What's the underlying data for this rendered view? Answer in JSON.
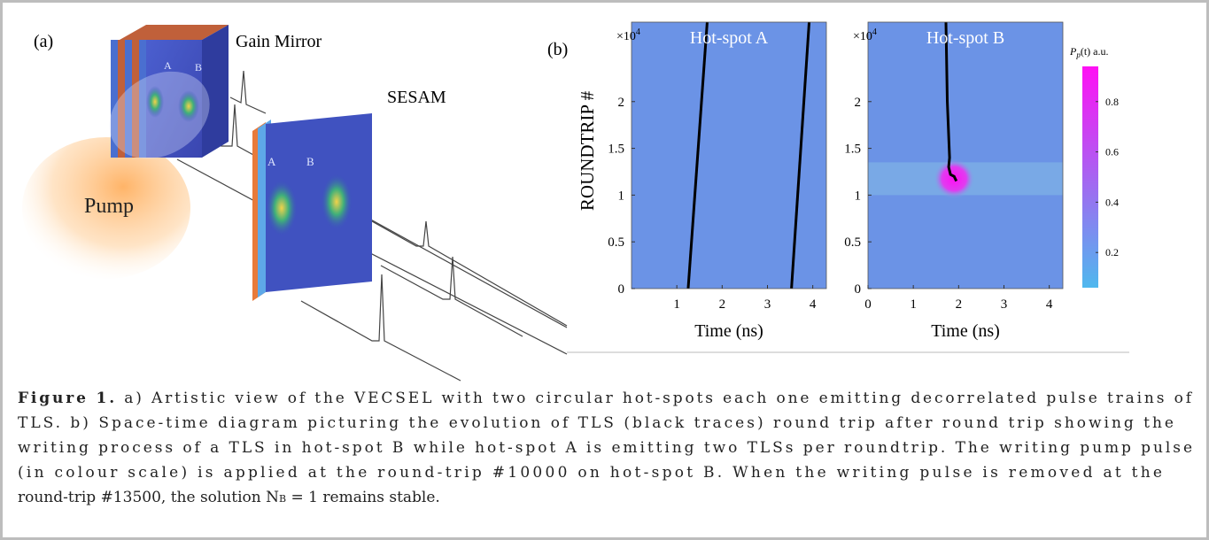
{
  "panel_a": {
    "label": "(a)",
    "gain_mirror": "Gain Mirror",
    "sesam": "SESAM",
    "pump": "Pump",
    "gain_spots": [
      "A",
      "B"
    ],
    "sesam_spots": [
      "A",
      "B"
    ]
  },
  "panel_b_label": "(b)",
  "chart_data": [
    {
      "type": "heatmap",
      "title": "Hot-spot A",
      "xlabel": "Time (ns)",
      "ylabel": "ROUNDTRIP #",
      "y_multiplier": {
        "base": "×10",
        "exponent": "4"
      },
      "background": "#6b93e6",
      "xlim": [
        0,
        4.3
      ],
      "ylim": [
        0,
        2.85
      ],
      "xticks": [
        1,
        2,
        3,
        4
      ],
      "yticks": [
        0,
        0.5,
        1,
        1.5,
        2
      ],
      "traces": [
        {
          "color": "#000000",
          "x": [
            1.25,
            1.67
          ],
          "y": [
            0,
            2.85
          ]
        },
        {
          "color": "#000000",
          "x": [
            3.53,
            3.92
          ],
          "y": [
            0,
            2.85
          ]
        }
      ]
    },
    {
      "type": "heatmap",
      "title": "Hot-spot B",
      "xlabel": "Time (ns)",
      "y_multiplier": {
        "base": "×10",
        "exponent": "4"
      },
      "background": "#6b93e6",
      "xlim": [
        0,
        4.3
      ],
      "ylim": [
        0,
        2.85
      ],
      "xticks": [
        0,
        1,
        2,
        3,
        4
      ],
      "yticks": [
        0,
        0.5,
        1,
        1.5,
        2
      ],
      "pump_pulse": {
        "x": [
          1.45,
          2.35
        ],
        "y": [
          1,
          1.35
        ],
        "peak": 0.94,
        "band_color": "#79a9e6"
      },
      "traces": [
        {
          "color": "#000000",
          "x": [
            1.95,
            1.9,
            1.82,
            1.78,
            1.8,
            1.75,
            1.72
          ],
          "y": [
            1.15,
            1.2,
            1.22,
            1.3,
            1.4,
            2.0,
            2.85
          ]
        }
      ],
      "colorbar": {
        "label": [
          "P",
          "p",
          "(t) a.u."
        ],
        "lim": [
          0.06,
          0.94
        ],
        "ticks": [
          0.2,
          0.4,
          0.6,
          0.8
        ],
        "colors": [
          "#4fb8ee",
          "#ff10f4"
        ]
      }
    }
  ],
  "caption": {
    "label": "Figure 1.",
    "lines": [
      " a) Artistic view of the VECSEL with two circular hot-spots each one emitting decorrelated pulse trains of",
      "TLS. b) Space-time diagram picturing the evolution of TLS (black traces) round trip after round trip showing the",
      "writing process of a TLS in hot-spot B while hot-spot A is emitting two TLSs per roundtrip. The writing pump pulse",
      "(in colour scale) is applied at the round-trip #10000 on hot-spot B. When the writing pulse is removed at the"
    ],
    "last_line": [
      "round-trip #13500, the solution N",
      "B",
      " = 1 remains stable."
    ]
  }
}
